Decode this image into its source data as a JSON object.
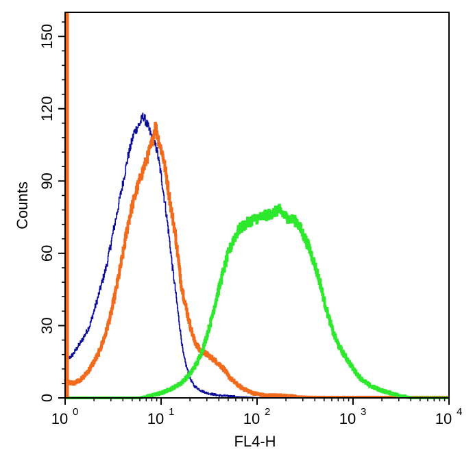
{
  "chart_data": {
    "type": "line",
    "title": "",
    "xlabel": "FL4-H",
    "ylabel": "Counts",
    "xscale": "log",
    "xlim": [
      1,
      10000
    ],
    "ylim": [
      0,
      160
    ],
    "grid": false,
    "legend": "none",
    "x_ticks": [
      {
        "value": 1,
        "base": "10",
        "exp": "0"
      },
      {
        "value": 10,
        "base": "10",
        "exp": "1"
      },
      {
        "value": 100,
        "base": "10",
        "exp": "2"
      },
      {
        "value": 1000,
        "base": "10",
        "exp": "3"
      },
      {
        "value": 10000,
        "base": "10",
        "exp": "4"
      }
    ],
    "y_ticks": [
      {
        "value": 0,
        "label": "0"
      },
      {
        "value": 30,
        "label": "30"
      },
      {
        "value": 60,
        "label": "60"
      },
      {
        "value": 90,
        "label": "90"
      },
      {
        "value": 120,
        "label": "120"
      },
      {
        "value": 150,
        "label": "150"
      }
    ],
    "series": [
      {
        "color": "#0a0a9a",
        "stroke": "thin",
        "points": [
          [
            1.0,
            15
          ],
          [
            1.2,
            18
          ],
          [
            1.5,
            24
          ],
          [
            1.8,
            30
          ],
          [
            2.2,
            42
          ],
          [
            2.7,
            55
          ],
          [
            3.2,
            70
          ],
          [
            3.8,
            85
          ],
          [
            4.5,
            100
          ],
          [
            5.2,
            110
          ],
          [
            6.0,
            114
          ],
          [
            6.5,
            117
          ],
          [
            7.2,
            113
          ],
          [
            8.0,
            108
          ],
          [
            9.0,
            103
          ],
          [
            10,
            92
          ],
          [
            11,
            80
          ],
          [
            12,
            68
          ],
          [
            13,
            55
          ],
          [
            14,
            45
          ],
          [
            15,
            35
          ],
          [
            16,
            26
          ],
          [
            17,
            18
          ],
          [
            18,
            14
          ],
          [
            20,
            8
          ],
          [
            22,
            5
          ],
          [
            26,
            3
          ],
          [
            30,
            2
          ],
          [
            40,
            1
          ],
          [
            60,
            0.5
          ],
          [
            80,
            0.3
          ],
          [
            100,
            0.1
          ],
          [
            160,
            0
          ]
        ]
      },
      {
        "color": "#f26a1b",
        "stroke": "thick",
        "points": [
          [
            1.0,
            7
          ],
          [
            1.2,
            6
          ],
          [
            1.5,
            8
          ],
          [
            1.8,
            12
          ],
          [
            2.2,
            18
          ],
          [
            2.6,
            26
          ],
          [
            3.0,
            35
          ],
          [
            3.5,
            48
          ],
          [
            4.0,
            60
          ],
          [
            4.5,
            72
          ],
          [
            5.0,
            80
          ],
          [
            5.7,
            88
          ],
          [
            6.5,
            95
          ],
          [
            7.2,
            100
          ],
          [
            8.0,
            106
          ],
          [
            8.7,
            113
          ],
          [
            9.5,
            106
          ],
          [
            10.5,
            100
          ],
          [
            11.5,
            90
          ],
          [
            12.5,
            80
          ],
          [
            14,
            68
          ],
          [
            15,
            58
          ],
          [
            16,
            48
          ],
          [
            18,
            38
          ],
          [
            20,
            30
          ],
          [
            22,
            24
          ],
          [
            25,
            20
          ],
          [
            30,
            18
          ],
          [
            35,
            16
          ],
          [
            40,
            14
          ],
          [
            45,
            12
          ],
          [
            50,
            9
          ],
          [
            60,
            6
          ],
          [
            70,
            4
          ],
          [
            90,
            2
          ],
          [
            120,
            1
          ],
          [
            170,
            1
          ],
          [
            250,
            0.5
          ],
          [
            400,
            0.3
          ],
          [
            10000,
            0.3
          ]
        ]
      },
      {
        "color": "#2ee82e",
        "stroke": "thick",
        "points": [
          [
            1.0,
            0
          ],
          [
            6.0,
            0
          ],
          [
            8.0,
            1
          ],
          [
            10,
            2
          ],
          [
            13,
            4
          ],
          [
            16,
            6
          ],
          [
            20,
            10
          ],
          [
            24,
            15
          ],
          [
            28,
            22
          ],
          [
            33,
            32
          ],
          [
            38,
            42
          ],
          [
            44,
            52
          ],
          [
            50,
            60
          ],
          [
            57,
            66
          ],
          [
            65,
            70
          ],
          [
            75,
            72
          ],
          [
            90,
            74
          ],
          [
            110,
            75
          ],
          [
            130,
            76
          ],
          [
            150,
            77
          ],
          [
            170,
            78
          ],
          [
            200,
            75
          ],
          [
            230,
            74
          ],
          [
            260,
            73
          ],
          [
            300,
            68
          ],
          [
            350,
            62
          ],
          [
            400,
            55
          ],
          [
            450,
            48
          ],
          [
            500,
            40
          ],
          [
            560,
            33
          ],
          [
            620,
            27
          ],
          [
            700,
            22
          ],
          [
            800,
            18
          ],
          [
            900,
            15
          ],
          [
            1000,
            12
          ],
          [
            1200,
            8
          ],
          [
            1500,
            5
          ],
          [
            2000,
            3
          ],
          [
            3000,
            1
          ],
          [
            4000,
            0
          ],
          [
            10000,
            0
          ]
        ]
      }
    ]
  }
}
